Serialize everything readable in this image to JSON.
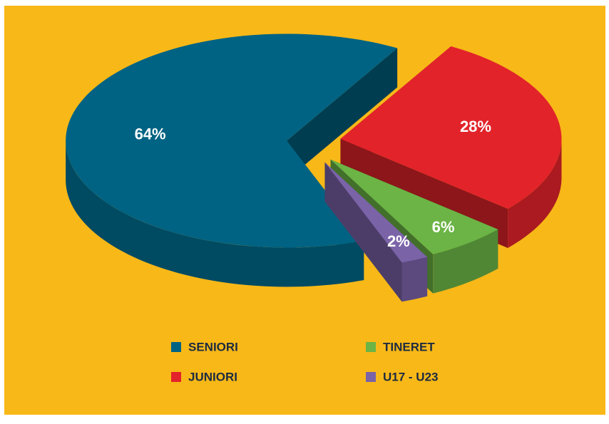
{
  "chart_data": {
    "type": "pie3d",
    "categories": [
      "SENIORI",
      "JUNIORI",
      "TINERET",
      "U17 - U23"
    ],
    "values": [
      64,
      28,
      6,
      2
    ],
    "value_labels": [
      "64%",
      "28%",
      "6%",
      "2%"
    ],
    "colors": [
      "#006383",
      "#e2232a",
      "#6bb445",
      "#7b63a8"
    ],
    "legend": "bottom"
  }
}
